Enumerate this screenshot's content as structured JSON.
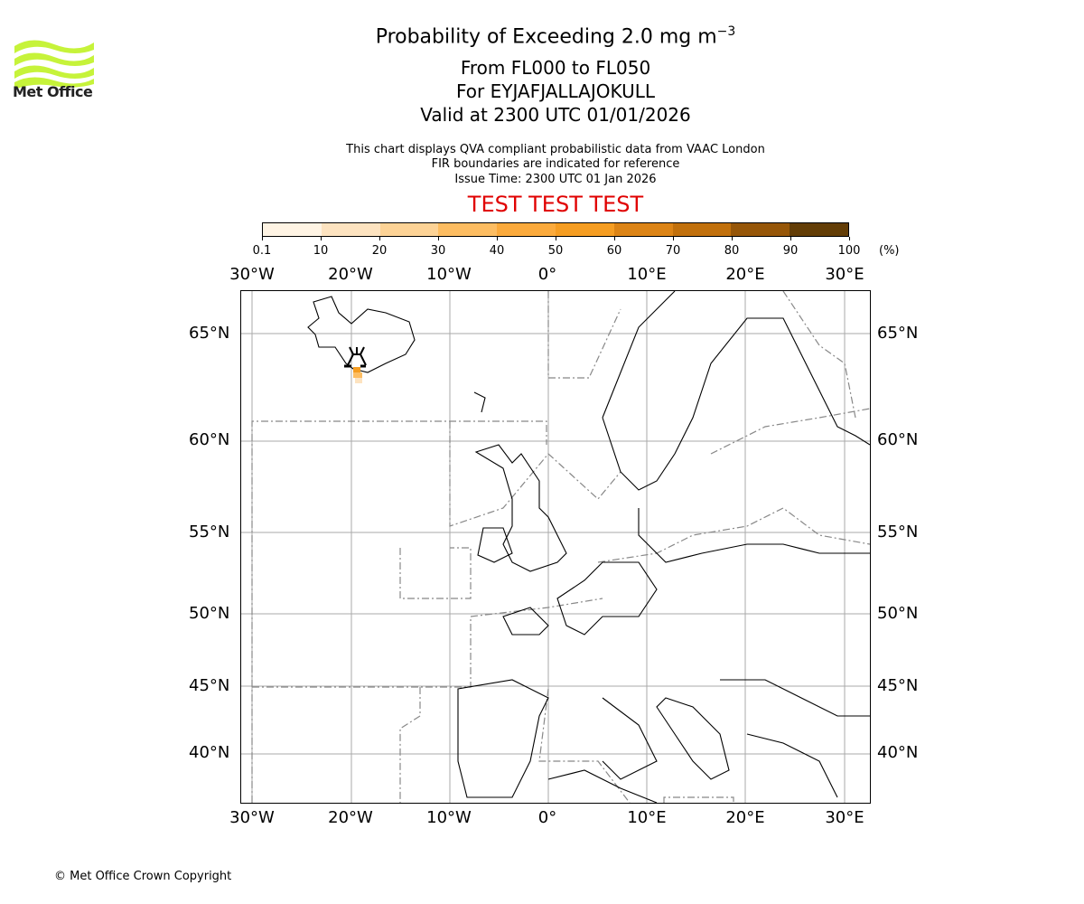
{
  "logo": {
    "text": "Met Office",
    "color": "#c6f33a"
  },
  "title": {
    "line1": "Probability of Exceeding 2.0 mg m",
    "line1_sup": "−3",
    "line2": "From FL000 to FL050",
    "line3": "For EYJAFJALLAJOKULL",
    "line4": "Valid at 2300 UTC 01/01/2026"
  },
  "subtitle": {
    "line1": "This chart displays QVA compliant probabilistic data from VAAC London",
    "line2": "FIR boundaries are indicated for reference",
    "line3": "Issue Time: 2300 UTC 01 Jan 2026"
  },
  "banner": {
    "text": "TEST TEST TEST",
    "color": "#e00000"
  },
  "colorbar": {
    "ticks": [
      "0.1",
      "10",
      "20",
      "30",
      "40",
      "50",
      "60",
      "70",
      "80",
      "90",
      "100"
    ],
    "unit": "(%)",
    "colors": [
      "#fff4e4",
      "#fde3c0",
      "#fdd396",
      "#fdbd62",
      "#fbaa3c",
      "#f59d22",
      "#dc8416",
      "#c1700c",
      "#965608",
      "#633d06"
    ]
  },
  "map": {
    "lon_labels": [
      "30°W",
      "20°W",
      "10°W",
      "0°",
      "10°E",
      "20°E",
      "30°E"
    ],
    "lat_labels": [
      "65°N",
      "60°N",
      "55°N",
      "50°N",
      "45°N",
      "40°N"
    ],
    "volcano": "EYJAFJALLAJOKULL"
  },
  "chart_data": {
    "type": "heatmap",
    "title": "Probability of Exceeding 2.0 mg m-3",
    "subtitle": "From FL000 to FL050, For EYJAFJALLAJOKULL, Valid at 2300 UTC 01/01/2026",
    "colorbar_levels": [
      0.1,
      10,
      20,
      30,
      40,
      50,
      60,
      70,
      80,
      90,
      100
    ],
    "colorbar_unit": "%",
    "x_ticks": [
      "30°W",
      "20°W",
      "10°W",
      "0°",
      "10°E",
      "20°E",
      "30°E"
    ],
    "y_ticks": [
      "65°N",
      "60°N",
      "55°N",
      "50°N",
      "45°N",
      "40°N"
    ],
    "xlim": [
      -31,
      33
    ],
    "ylim": [
      37,
      67
    ],
    "grid": true,
    "plume": [
      {
        "lon": -19.6,
        "lat": 63.6,
        "probability_range": "10-60"
      }
    ]
  },
  "footer": {
    "copyright": "© Met Office Crown Copyright"
  }
}
